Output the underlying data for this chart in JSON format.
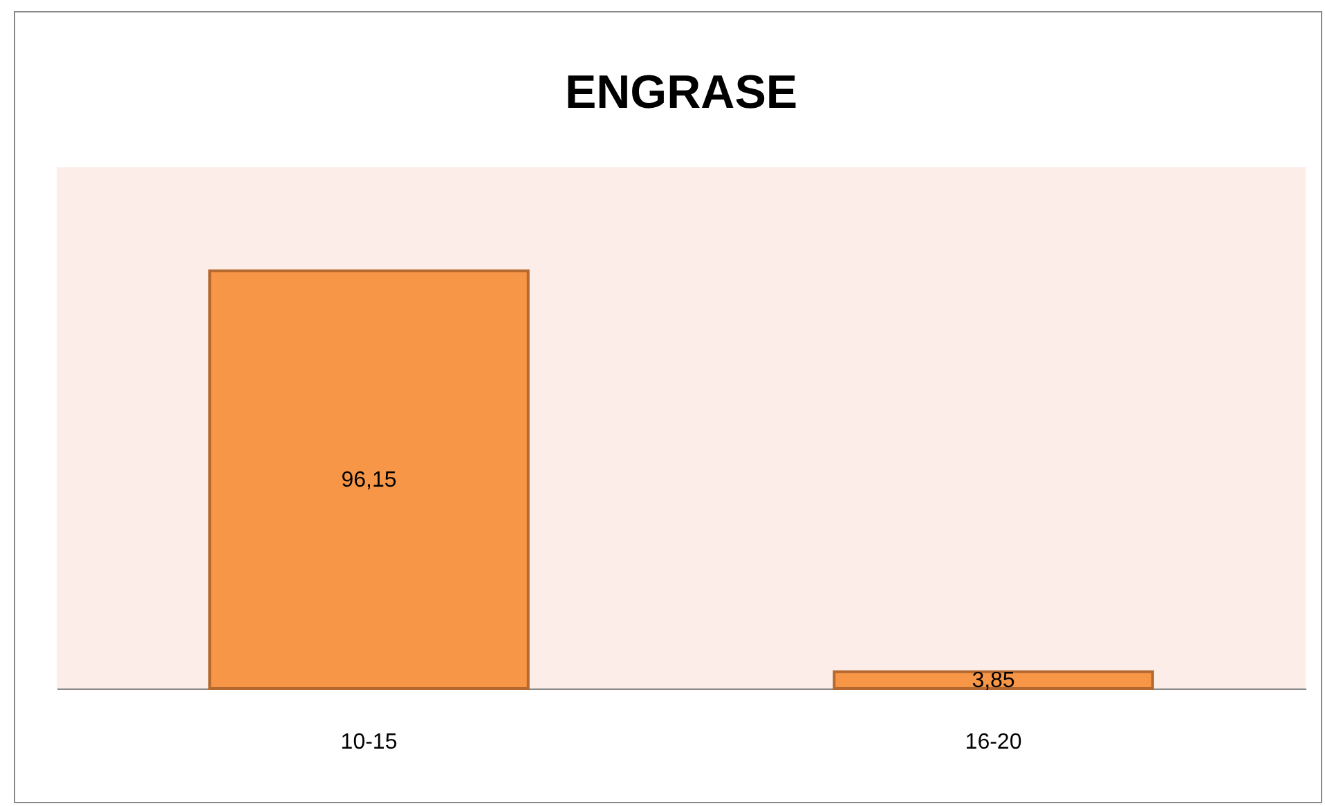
{
  "chart_data": {
    "type": "bar",
    "title": "ENGRASE",
    "categories": [
      "10-15",
      "16-20"
    ],
    "values": [
      96.15,
      3.85
    ],
    "value_labels": [
      "96,15",
      "3,85"
    ],
    "color": "#f79646",
    "ylim": [
      0,
      120
    ],
    "grid": false
  }
}
